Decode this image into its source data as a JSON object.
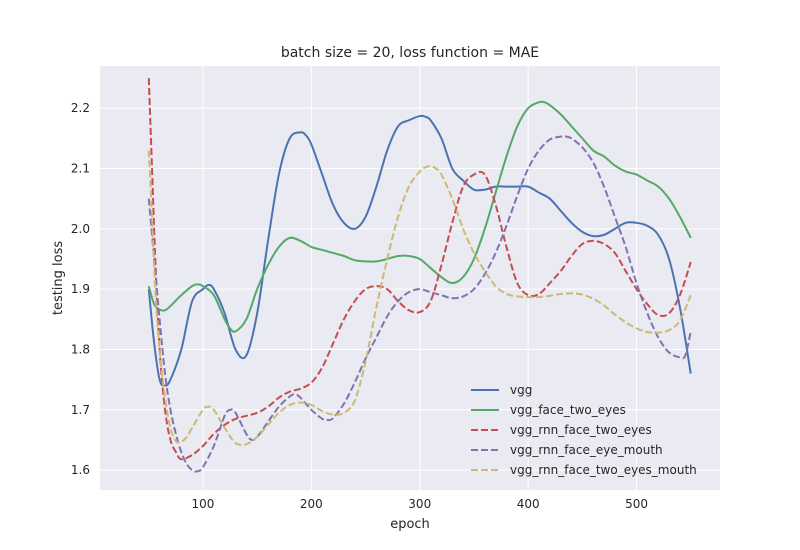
{
  "chart_data": {
    "type": "line",
    "title": "batch size = 20, loss function = MAE",
    "xlabel": "epoch",
    "ylabel": "testing loss",
    "xlim": [
      5,
      577
    ],
    "ylim": [
      1.567,
      2.27
    ],
    "xticks": [
      100,
      200,
      300,
      400,
      500
    ],
    "yticks": [
      1.6,
      1.7,
      1.8,
      1.9,
      2.0,
      2.1,
      2.2
    ],
    "grid": true,
    "legend_position": "lower-right",
    "series": [
      {
        "name": "vgg",
        "color": "#4c72b0",
        "dash": "solid",
        "x": [
          50,
          55,
          60,
          65,
          70,
          80,
          90,
          100,
          105,
          110,
          120,
          130,
          140,
          150,
          160,
          170,
          180,
          190,
          195,
          200,
          210,
          220,
          230,
          240,
          250,
          260,
          270,
          280,
          290,
          300,
          305,
          310,
          320,
          330,
          340,
          350,
          360,
          370,
          380,
          390,
          400,
          410,
          420,
          430,
          440,
          450,
          460,
          470,
          480,
          490,
          500,
          510,
          520,
          530,
          540,
          550
        ],
        "y": [
          1.9,
          1.81,
          1.75,
          1.74,
          1.75,
          1.8,
          1.88,
          1.9,
          1.907,
          1.9,
          1.86,
          1.8,
          1.79,
          1.86,
          1.98,
          2.09,
          2.15,
          2.16,
          2.155,
          2.14,
          2.09,
          2.04,
          2.01,
          2.0,
          2.02,
          2.07,
          2.13,
          2.17,
          2.18,
          2.187,
          2.186,
          2.18,
          2.15,
          2.1,
          2.08,
          2.065,
          2.065,
          2.07,
          2.07,
          2.07,
          2.07,
          2.06,
          2.05,
          2.03,
          2.01,
          1.995,
          1.988,
          1.99,
          2.0,
          2.01,
          2.01,
          2.005,
          1.99,
          1.95,
          1.87,
          1.76
        ]
      },
      {
        "name": "vgg_face_two_eyes",
        "color": "#55a868",
        "dash": "solid",
        "x": [
          50,
          55,
          60,
          65,
          70,
          80,
          90,
          95,
          100,
          110,
          120,
          125,
          130,
          140,
          150,
          160,
          170,
          180,
          190,
          200,
          210,
          220,
          230,
          240,
          250,
          260,
          270,
          280,
          290,
          300,
          310,
          320,
          330,
          340,
          350,
          360,
          370,
          380,
          390,
          400,
          410,
          415,
          420,
          430,
          440,
          450,
          460,
          470,
          480,
          490,
          500,
          510,
          520,
          530,
          540,
          550
        ],
        "y": [
          1.905,
          1.875,
          1.866,
          1.865,
          1.872,
          1.89,
          1.905,
          1.908,
          1.905,
          1.89,
          1.85,
          1.835,
          1.83,
          1.85,
          1.9,
          1.94,
          1.97,
          1.985,
          1.98,
          1.97,
          1.965,
          1.96,
          1.955,
          1.948,
          1.946,
          1.946,
          1.95,
          1.955,
          1.955,
          1.95,
          1.935,
          1.92,
          1.91,
          1.92,
          1.95,
          2.0,
          2.06,
          2.12,
          2.17,
          2.2,
          2.21,
          2.21,
          2.205,
          2.19,
          2.17,
          2.15,
          2.13,
          2.12,
          2.105,
          2.095,
          2.09,
          2.08,
          2.07,
          2.05,
          2.02,
          1.985
        ]
      },
      {
        "name": "vgg_rnn_face_two_eyes",
        "color": "#c44e52",
        "dash": "dashed",
        "x": [
          50,
          53,
          56,
          60,
          65,
          70,
          75,
          80,
          90,
          100,
          110,
          120,
          130,
          140,
          150,
          160,
          170,
          180,
          190,
          200,
          210,
          220,
          230,
          240,
          250,
          260,
          270,
          280,
          290,
          300,
          310,
          320,
          330,
          340,
          350,
          360,
          370,
          380,
          390,
          400,
          410,
          420,
          430,
          440,
          450,
          460,
          470,
          480,
          490,
          500,
          510,
          520,
          530,
          540,
          550
        ],
        "y": [
          2.25,
          2.1,
          1.95,
          1.8,
          1.7,
          1.65,
          1.63,
          1.618,
          1.625,
          1.64,
          1.66,
          1.675,
          1.685,
          1.69,
          1.695,
          1.705,
          1.72,
          1.73,
          1.735,
          1.745,
          1.77,
          1.81,
          1.85,
          1.88,
          1.9,
          1.905,
          1.9,
          1.88,
          1.865,
          1.862,
          1.88,
          1.94,
          2.01,
          2.07,
          2.09,
          2.09,
          2.04,
          1.97,
          1.91,
          1.89,
          1.892,
          1.91,
          1.93,
          1.955,
          1.975,
          1.98,
          1.975,
          1.96,
          1.93,
          1.9,
          1.875,
          1.857,
          1.86,
          1.89,
          1.945
        ]
      },
      {
        "name": "vgg_rnn_face_eye_mouth",
        "color": "#8172b2",
        "dash": "dashed",
        "x": [
          50,
          55,
          60,
          65,
          70,
          75,
          80,
          85,
          90,
          95,
          100,
          110,
          120,
          125,
          130,
          140,
          145,
          150,
          160,
          170,
          180,
          185,
          190,
          200,
          210,
          215,
          220,
          230,
          240,
          250,
          260,
          270,
          280,
          290,
          300,
          310,
          320,
          330,
          340,
          350,
          360,
          370,
          380,
          390,
          400,
          410,
          420,
          430,
          435,
          440,
          450,
          460,
          470,
          480,
          490,
          500,
          510,
          520,
          530,
          540,
          545,
          550
        ],
        "y": [
          2.05,
          1.95,
          1.85,
          1.76,
          1.7,
          1.66,
          1.63,
          1.61,
          1.6,
          1.598,
          1.605,
          1.64,
          1.69,
          1.7,
          1.695,
          1.66,
          1.65,
          1.655,
          1.68,
          1.705,
          1.722,
          1.726,
          1.72,
          1.7,
          1.685,
          1.683,
          1.686,
          1.71,
          1.745,
          1.785,
          1.82,
          1.855,
          1.88,
          1.895,
          1.9,
          1.895,
          1.89,
          1.885,
          1.888,
          1.9,
          1.925,
          1.96,
          2.005,
          2.055,
          2.1,
          2.13,
          2.148,
          2.153,
          2.153,
          2.15,
          2.135,
          2.11,
          2.07,
          2.02,
          1.97,
          1.91,
          1.86,
          1.82,
          1.795,
          1.787,
          1.79,
          1.83
        ]
      },
      {
        "name": "vgg_rnn_face_two_eyes_mouth",
        "color": "#ccb974",
        "dash": "dashed",
        "x": [
          50,
          53,
          56,
          60,
          65,
          70,
          75,
          80,
          85,
          90,
          100,
          105,
          110,
          120,
          130,
          140,
          150,
          160,
          170,
          180,
          190,
          200,
          210,
          220,
          230,
          240,
          250,
          260,
          270,
          280,
          290,
          300,
          305,
          310,
          315,
          320,
          330,
          340,
          350,
          360,
          370,
          380,
          390,
          400,
          410,
          420,
          430,
          440,
          450,
          460,
          470,
          480,
          490,
          500,
          510,
          520,
          530,
          540,
          550
        ],
        "y": [
          2.13,
          2.02,
          1.9,
          1.8,
          1.72,
          1.67,
          1.648,
          1.647,
          1.655,
          1.67,
          1.7,
          1.705,
          1.7,
          1.67,
          1.645,
          1.643,
          1.655,
          1.675,
          1.695,
          1.708,
          1.712,
          1.708,
          1.698,
          1.692,
          1.695,
          1.715,
          1.78,
          1.87,
          1.95,
          2.02,
          2.07,
          2.095,
          2.102,
          2.104,
          2.1,
          2.09,
          2.05,
          2.0,
          1.96,
          1.93,
          1.905,
          1.892,
          1.888,
          1.887,
          1.887,
          1.889,
          1.892,
          1.893,
          1.891,
          1.884,
          1.873,
          1.858,
          1.845,
          1.835,
          1.829,
          1.828,
          1.832,
          1.848,
          1.89
        ]
      }
    ]
  }
}
